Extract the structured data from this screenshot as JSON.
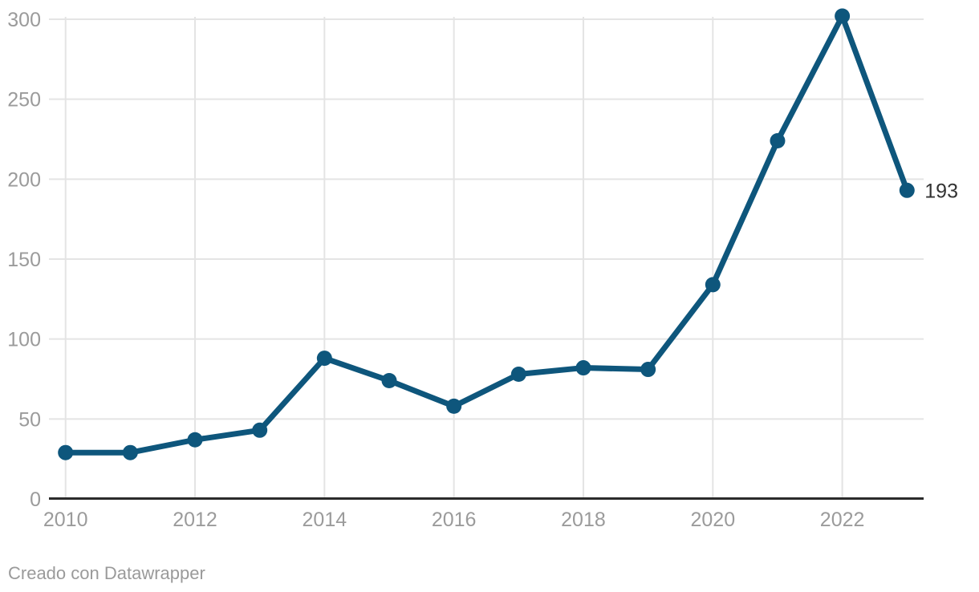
{
  "chart_data": {
    "type": "line",
    "title": "",
    "xlabel": "",
    "ylabel": "",
    "x": [
      2010,
      2011,
      2012,
      2013,
      2014,
      2015,
      2016,
      2017,
      2018,
      2019,
      2020,
      2021,
      2022,
      2023
    ],
    "values": [
      29,
      29,
      37,
      43,
      88,
      74,
      58,
      78,
      82,
      81,
      134,
      224,
      302,
      193
    ],
    "end_label": "193",
    "x_tick_years": [
      2010,
      2012,
      2014,
      2016,
      2018,
      2020,
      2022
    ],
    "x_tick_labels": [
      "2010",
      "2012",
      "2014",
      "2016",
      "2018",
      "2020",
      "2022"
    ],
    "y_ticks": [
      0,
      50,
      100,
      150,
      200,
      250,
      300
    ],
    "y_tick_labels": [
      "0",
      "50",
      "100",
      "150",
      "200",
      "250",
      "300"
    ],
    "ylim": [
      0,
      300
    ],
    "grid": "on",
    "legend": "none",
    "colors": {
      "line": "#0e567c",
      "point": "#0e567c",
      "grid": "#e4e4e4",
      "axis_line": "#2b2b2b",
      "tick_label": "#9b9b9b",
      "end_label": "#333333"
    }
  },
  "footer": {
    "credit": "Creado con Datawrapper"
  }
}
